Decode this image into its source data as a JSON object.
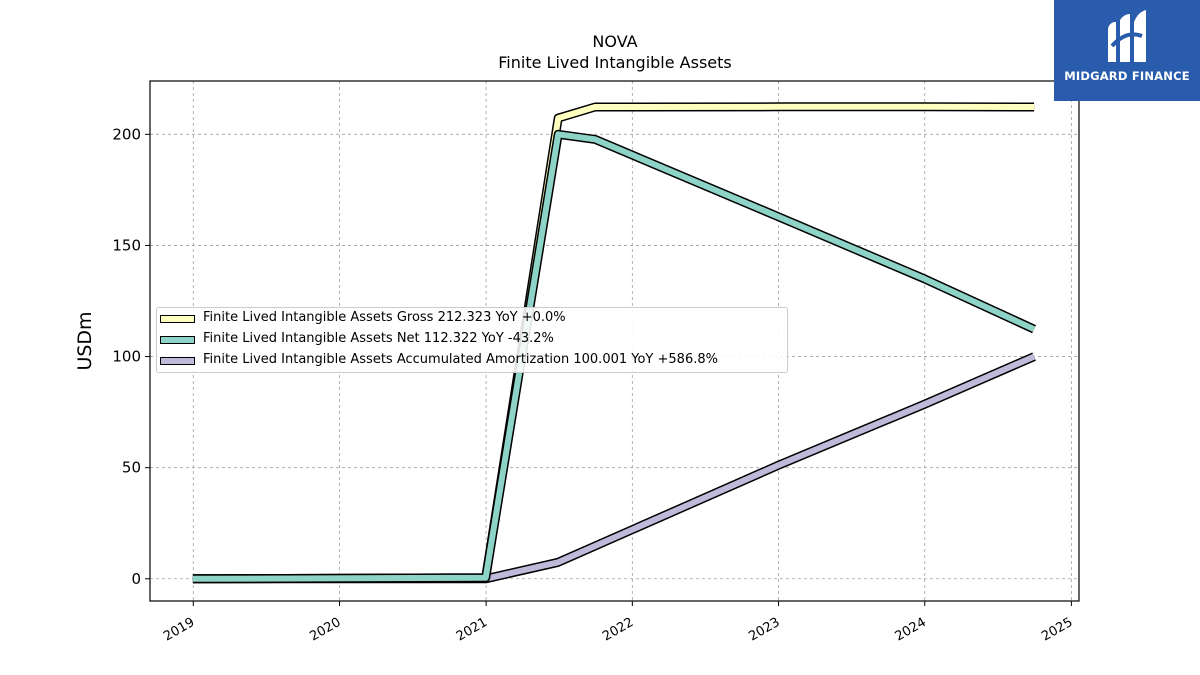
{
  "chart_data": {
    "type": "line",
    "title": "NOVA",
    "subtitle": "Finite Lived Intangible Assets",
    "ylabel": "USDm",
    "xlabel": "",
    "xlim": [
      "2018-09-15",
      "2025-01-20"
    ],
    "ylim": [
      -10,
      224
    ],
    "x_ticks": [
      "2019",
      "2020",
      "2021",
      "2022",
      "2023",
      "2024",
      "2025"
    ],
    "y_ticks": [
      0,
      50,
      100,
      150,
      200
    ],
    "grid": true,
    "legend_position": "center-left",
    "series": [
      {
        "name": "Finite Lived Intangible Assets Gross",
        "legend_label": "Finite Lived Intangible Assets Gross  212.323 YoY +0.0%",
        "color": "#ffffbf",
        "x": [
          "2018-12-31",
          "2020-12-31",
          "2021-06-30",
          "2021-09-30",
          "2022-12-31",
          "2023-12-31",
          "2024-09-30"
        ],
        "values": [
          0,
          0.5,
          207.3,
          212.3,
          212.4,
          212.4,
          212.3
        ]
      },
      {
        "name": "Finite Lived Intangible Assets Net",
        "legend_label": "Finite Lived Intangible Assets Net  112.322 YoY -43.2%",
        "color": "#8dd3c7",
        "x": [
          "2018-12-31",
          "2020-12-31",
          "2021-06-30",
          "2021-09-30",
          "2022-12-31",
          "2023-12-31",
          "2024-09-30"
        ],
        "values": [
          0,
          0.5,
          200,
          197.7,
          163,
          135,
          112.3
        ]
      },
      {
        "name": "Finite Lived Intangible Assets Accumulated Amortization",
        "legend_label": "Finite Lived Intangible Assets Accumulated Amortization  100.001 YoY +586.8%",
        "color": "#bebada",
        "x": [
          "2018-12-31",
          "2020-12-31",
          "2021-06-30",
          "2022-12-31",
          "2023-12-31",
          "2024-09-30"
        ],
        "values": [
          0,
          0,
          7.4,
          51,
          78.5,
          100
        ]
      }
    ]
  },
  "logo": {
    "text": "MIDGARD FINANCE",
    "color": "#2a5cad"
  }
}
